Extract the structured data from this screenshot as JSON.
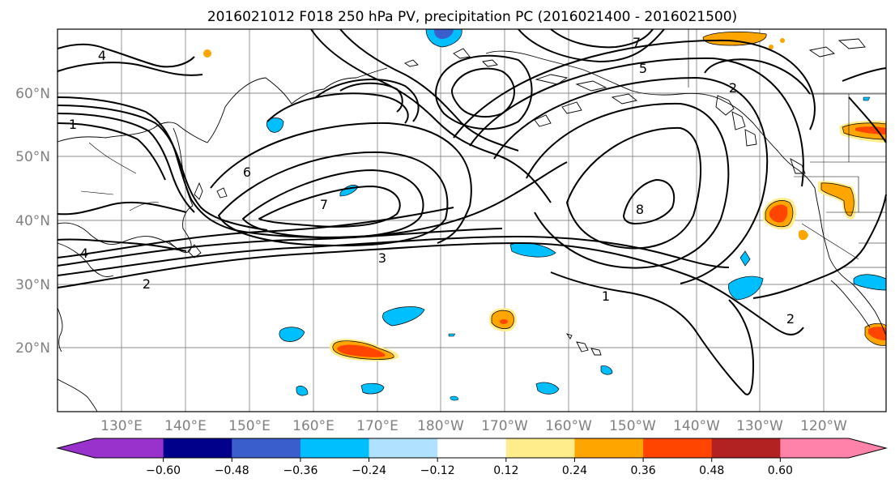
{
  "title": "2016021012 F018 250 hPa PV, precipitation PC (2016021400 - 2016021500)",
  "lat_labels": [
    "60°N",
    "50°N",
    "40°N",
    "30°N",
    "20°N"
  ],
  "lon_labels": [
    "130°E",
    "140°E",
    "150°E",
    "160°E",
    "170°E",
    "180°W",
    "170°W",
    "160°W",
    "150°W",
    "140°W",
    "130°W",
    "120°W"
  ],
  "contour_labels": {
    "pv_1_west": "1",
    "pv_2_west": "2",
    "pv_3_center": "3",
    "pv_4_west": "4",
    "pv_4_north": "4",
    "pv_7_center": "7",
    "pv_8_ridge": "8",
    "pv_1_south": "1",
    "pv_2_east": "2",
    "pv_2_north": "2",
    "pv_6_mid": "6",
    "pv_5_ne": "5",
    "pv_7_ne": "7"
  },
  "colorbar": {
    "colors": [
      "#9932cc",
      "#00008b",
      "#3a5fcd",
      "#00bfff",
      "#b0e2ff",
      "#ffffff",
      "#ffec8b",
      "#ffa500",
      "#ff4500",
      "#b22222",
      "#ff82ab"
    ],
    "tick_labels": [
      "-0.60",
      "-0.48",
      "-0.36",
      "-0.24",
      "-0.12",
      "0.12",
      "0.24",
      "0.36",
      "0.48",
      "0.60"
    ]
  }
}
